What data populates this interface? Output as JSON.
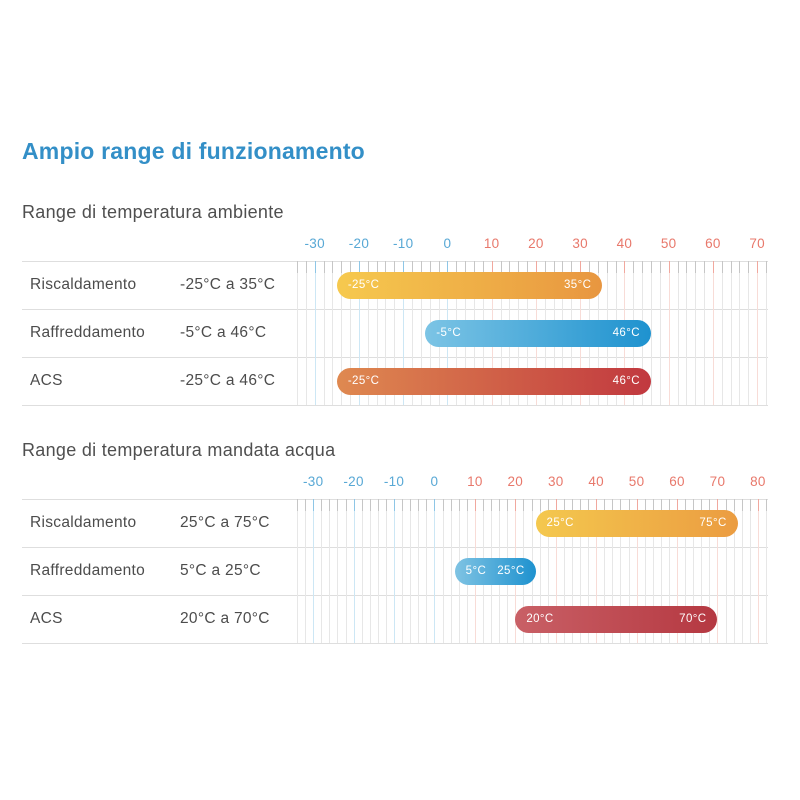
{
  "title": "Ampio range di funzionamento",
  "colors": {
    "title": "#338fc7",
    "section_title": "#4f4f4f",
    "row_text": "#4c4c4c",
    "axis_label_neg": "#58a8d5",
    "axis_label_pos": "#e8786b",
    "grid_minor": "#e7e7e7",
    "grid_major_neg": "#cde7f5",
    "grid_major_pos": "#f8dcd7",
    "tick_minor": "#c6c6c6",
    "tick_major_neg": "#8ec6e6",
    "tick_major_pos": "#f1a89e",
    "separator": "#dedede",
    "bar_label": "#ffffff"
  },
  "chart_data": [
    {
      "type": "bar",
      "title": "Range di temperatura ambiente",
      "orientation": "horizontal-range",
      "unit": "°C",
      "axis": {
        "min": -34,
        "max": 72,
        "minor_step": 2,
        "major_ticks": [
          -30,
          -20,
          -10,
          0,
          10,
          20,
          30,
          40,
          50,
          60,
          70
        ]
      },
      "rows": [
        {
          "label": "Riscaldamento",
          "range_text": "-25°C a 35°C",
          "start": -25,
          "end": 35,
          "start_label": "-25°C",
          "end_label": "35°C",
          "gradient": [
            "#f6c94e",
            "#e89640"
          ]
        },
        {
          "label": "Raffreddamento",
          "range_text": "-5°C a 46°C",
          "start": -5,
          "end": 46,
          "start_label": "-5°C",
          "end_label": "46°C",
          "gradient": [
            "#7cc4e5",
            "#1e92cf"
          ]
        },
        {
          "label": "ACS",
          "range_text": "-25°C a 46°C",
          "start": -25,
          "end": 46,
          "start_label": "-25°C",
          "end_label": "46°C",
          "gradient": [
            "#df8950",
            "#c1383f"
          ]
        }
      ]
    },
    {
      "type": "bar",
      "title": "Range di temperatura mandata acqua",
      "orientation": "horizontal-range",
      "unit": "°C",
      "axis": {
        "min": -34,
        "max": 82,
        "minor_step": 2,
        "major_ticks": [
          -30,
          -20,
          -10,
          0,
          10,
          20,
          30,
          40,
          50,
          60,
          70,
          80
        ]
      },
      "rows": [
        {
          "label": "Riscaldamento",
          "range_text": "25°C a 75°C",
          "start": 25,
          "end": 75,
          "start_label": "25°C",
          "end_label": "75°C",
          "gradient": [
            "#f4c84e",
            "#eb9c41"
          ]
        },
        {
          "label": "Raffreddamento",
          "range_text": "5°C a 25°C",
          "start": 5,
          "end": 25,
          "start_label": "5°C",
          "end_label": "25°C",
          "gradient": [
            "#7fc3e3",
            "#1e92cf"
          ]
        },
        {
          "label": "ACS",
          "range_text": "20°C a 70°C",
          "start": 20,
          "end": 70,
          "start_label": "20°C",
          "end_label": "70°C",
          "gradient": [
            "#c96066",
            "#b53841"
          ]
        }
      ]
    }
  ]
}
